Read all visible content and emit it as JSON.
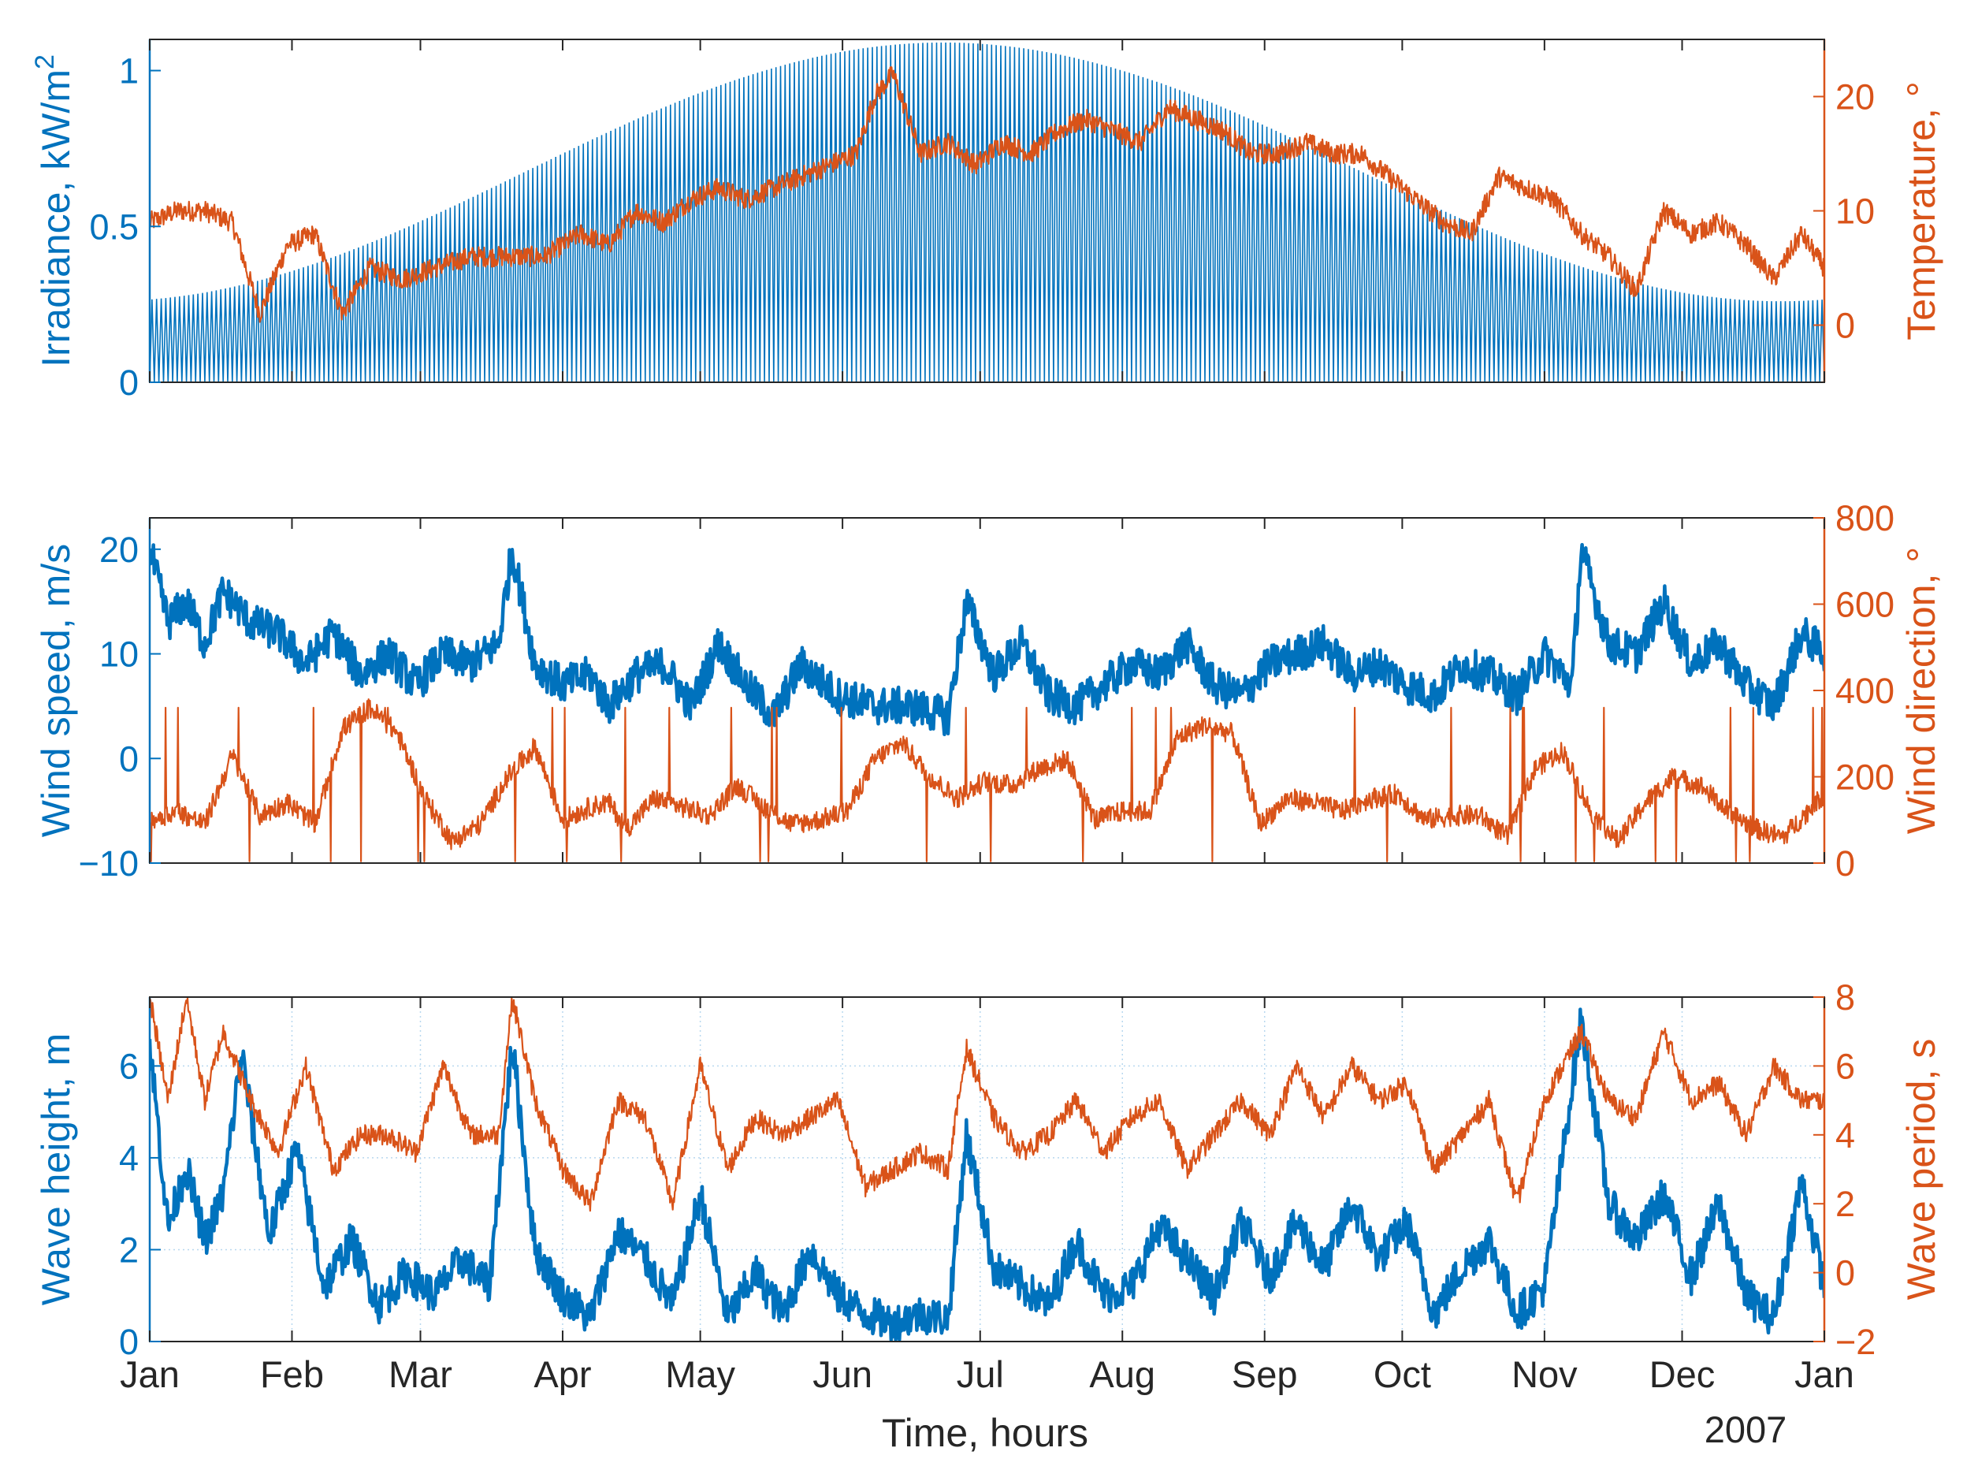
{
  "colors": {
    "left": "#0072BD",
    "right": "#D95319",
    "axis": "#262626",
    "grid": "#b8d8ef"
  },
  "chart_data": [
    {
      "type": "line",
      "title": "",
      "ylabel_left": "Irradiance, kW/m",
      "ylabel_left_sup": "2",
      "ylabel_right": "Temperature, °",
      "ylim_left": [
        0,
        1.1
      ],
      "ylim_right": [
        -5,
        25
      ],
      "yticks_left": [
        0,
        0.5,
        1
      ],
      "yticks_left_labels": [
        "0",
        "0.5",
        "1"
      ],
      "yticks_right": [
        0,
        10,
        20
      ],
      "yticks_right_labels": [
        "0",
        "10",
        "20"
      ],
      "grid": false,
      "series": [
        {
          "name": "Irradiance",
          "axis": "left",
          "style": "daily-cycle",
          "peak_kw_m2": {
            "jan": 0.26,
            "jun": 1.09,
            "dec": 0.25
          }
        },
        {
          "name": "Temperature",
          "axis": "right",
          "style": "line",
          "x_day": [
            0,
            6,
            12,
            18,
            24,
            30,
            36,
            42,
            48,
            55,
            62,
            70,
            78,
            86,
            94,
            100,
            106,
            112,
            118,
            124,
            130,
            136,
            142,
            148,
            154,
            158,
            162,
            168,
            174,
            180,
            186,
            192,
            198,
            204,
            210,
            216,
            222,
            228,
            234,
            240,
            246,
            252,
            258,
            264,
            270,
            276,
            282,
            288,
            294,
            300,
            306,
            312,
            318,
            324,
            330,
            336,
            342,
            348,
            354,
            360,
            365
          ],
          "values": [
            9,
            10,
            10,
            9,
            1,
            7,
            8,
            1,
            5,
            4,
            5,
            6,
            6,
            6,
            8,
            7,
            10,
            9,
            11,
            12,
            11,
            12,
            13,
            14,
            15,
            20,
            22,
            15,
            16,
            14,
            16,
            15,
            17,
            18,
            17,
            16,
            19,
            18,
            17,
            15,
            15,
            16,
            15,
            15,
            13,
            11,
            9,
            8,
            13,
            12,
            11,
            8,
            6,
            3,
            10,
            8,
            9,
            7,
            4,
            8,
            5
          ]
        }
      ]
    },
    {
      "type": "line",
      "title": "",
      "ylabel_left": "Wind speed, m/s",
      "ylabel_right": "Wind direction, °",
      "ylim_left": [
        -10,
        23
      ],
      "ylim_right": [
        0,
        800
      ],
      "yticks_left": [
        -10,
        0,
        10,
        20
      ],
      "yticks_left_labels": [
        "−10",
        "0",
        "10",
        "20"
      ],
      "yticks_right": [
        0,
        200,
        400,
        600,
        800
      ],
      "yticks_right_labels": [
        "0",
        "200",
        "400",
        "600",
        "800"
      ],
      "grid": false,
      "series": [
        {
          "name": "Wind speed",
          "axis": "left",
          "style": "thick",
          "x_day": [
            0,
            4,
            8,
            12,
            16,
            22,
            28,
            34,
            40,
            46,
            52,
            58,
            64,
            70,
            76,
            79,
            84,
            90,
            96,
            100,
            106,
            112,
            118,
            124,
            130,
            136,
            142,
            150,
            158,
            166,
            174,
            178,
            184,
            190,
            196,
            202,
            208,
            214,
            220,
            226,
            232,
            238,
            244,
            250,
            256,
            262,
            268,
            274,
            280,
            286,
            292,
            298,
            304,
            310,
            312,
            318,
            324,
            330,
            336,
            342,
            348,
            354,
            360,
            365
          ],
          "values": [
            20,
            13,
            15,
            11,
            16,
            13,
            12,
            9,
            12,
            8,
            10,
            7,
            10,
            9,
            11,
            20,
            9,
            7,
            8,
            5,
            8,
            9,
            5,
            11,
            7,
            4,
            9,
            6,
            5,
            5,
            4,
            15,
            8,
            11,
            6,
            5,
            7,
            9,
            8,
            11,
            7,
            6,
            9,
            10,
            11,
            8,
            9,
            7,
            6,
            9,
            8,
            6,
            10,
            7,
            20,
            11,
            10,
            15,
            9,
            11,
            7,
            5,
            12,
            10
          ]
        },
        {
          "name": "Wind direction",
          "axis": "right",
          "style": "spiky",
          "x_day": [
            0,
            6,
            12,
            18,
            24,
            30,
            36,
            42,
            48,
            54,
            60,
            66,
            72,
            78,
            84,
            90,
            96,
            100,
            104,
            110,
            116,
            122,
            128,
            134,
            140,
            146,
            152,
            158,
            164,
            170,
            176,
            182,
            188,
            194,
            200,
            206,
            212,
            218,
            224,
            230,
            236,
            242,
            248,
            254,
            260,
            266,
            272,
            278,
            284,
            290,
            296,
            302,
            308,
            314,
            320,
            326,
            332,
            338,
            344,
            350,
            356,
            365
          ],
          "values": [
            100,
            120,
            90,
            250,
            110,
            140,
            90,
            310,
            360,
            300,
            150,
            50,
            90,
            200,
            270,
            100,
            130,
            140,
            80,
            150,
            130,
            110,
            180,
            130,
            90,
            100,
            120,
            240,
            280,
            200,
            150,
            190,
            180,
            220,
            240,
            100,
            120,
            120,
            290,
            320,
            300,
            90,
            150,
            140,
            120,
            150,
            160,
            100,
            110,
            110,
            60,
            220,
            260,
            120,
            50,
            140,
            200,
            180,
            120,
            80,
            60,
            160
          ]
        }
      ]
    },
    {
      "type": "line",
      "title": "",
      "xlabel": "Time, hours",
      "year_label": "2007",
      "ylabel_left": "Wave height, m",
      "ylabel_right": "Wave period, s",
      "ylim_left": [
        0,
        7.5
      ],
      "ylim_right": [
        -2,
        8
      ],
      "yticks_left": [
        0,
        2,
        4,
        6
      ],
      "yticks_left_labels": [
        "0",
        "2",
        "4",
        "6"
      ],
      "yticks_right": [
        -2,
        0,
        2,
        4,
        6,
        8
      ],
      "yticks_right_labels": [
        "−2",
        "0",
        "2",
        "4",
        "6",
        "8"
      ],
      "grid": true,
      "series": [
        {
          "name": "Wave height",
          "axis": "left",
          "style": "thick",
          "x_day": [
            0,
            4,
            8,
            12,
            16,
            20,
            26,
            32,
            38,
            44,
            50,
            56,
            62,
            68,
            74,
            79,
            84,
            90,
            96,
            102,
            108,
            114,
            120,
            126,
            132,
            138,
            144,
            150,
            156,
            162,
            168,
            174,
            178,
            184,
            190,
            196,
            202,
            208,
            214,
            220,
            226,
            232,
            238,
            244,
            250,
            256,
            262,
            268,
            274,
            280,
            286,
            292,
            298,
            304,
            312,
            318,
            324,
            330,
            336,
            342,
            348,
            354,
            360,
            365
          ],
          "values": [
            6.5,
            2.5,
            3.8,
            2.2,
            3.2,
            6.3,
            2.3,
            4.2,
            1.2,
            2.2,
            0.8,
            1.5,
            1.0,
            1.8,
            1.2,
            6.5,
            2.0,
            1.0,
            0.5,
            2.4,
            1.8,
            0.8,
            3.2,
            0.5,
            1.5,
            0.6,
            2.0,
            1.0,
            0.6,
            0.4,
            0.6,
            0.5,
            4.5,
            1.6,
            1.2,
            0.8,
            2.2,
            1.0,
            1.2,
            2.5,
            1.8,
            1.0,
            2.6,
            1.4,
            2.6,
            1.6,
            3.0,
            1.8,
            2.6,
            0.6,
            1.6,
            2.2,
            0.6,
            1.2,
            7.0,
            3.0,
            2.2,
            3.2,
            1.4,
            3.0,
            1.0,
            0.5,
            3.5,
            1.2
          ]
        },
        {
          "name": "Wave period",
          "axis": "right",
          "style": "line",
          "x_day": [
            0,
            4,
            8,
            12,
            16,
            22,
            28,
            34,
            40,
            46,
            52,
            58,
            64,
            70,
            76,
            79,
            84,
            90,
            96,
            102,
            108,
            114,
            120,
            126,
            132,
            138,
            144,
            150,
            156,
            162,
            168,
            174,
            178,
            184,
            190,
            196,
            202,
            208,
            214,
            220,
            226,
            232,
            238,
            244,
            250,
            256,
            262,
            268,
            274,
            280,
            286,
            292,
            298,
            304,
            312,
            318,
            324,
            330,
            336,
            342,
            348,
            354,
            360,
            365
          ],
          "values": [
            8,
            5,
            8,
            5,
            7,
            5,
            3.5,
            6,
            3,
            4,
            4,
            3.5,
            6,
            4,
            4,
            8,
            5,
            3,
            2,
            5,
            4.5,
            2,
            6,
            3,
            4.5,
            4,
            4.5,
            5,
            2.5,
            3,
            3.5,
            3,
            6.5,
            4.5,
            3.5,
            4,
            5,
            3.5,
            4.5,
            5,
            3,
            4,
            5,
            4,
            6,
            4.5,
            6,
            5,
            5.5,
            3,
            4,
            5,
            2,
            5,
            7,
            5,
            4.5,
            7,
            5,
            5.5,
            4,
            6,
            5,
            5
          ]
        }
      ]
    }
  ],
  "x_axis": {
    "xlim_days": [
      0,
      365
    ],
    "ticks_days": [
      0,
      31,
      59,
      90,
      120,
      151,
      181,
      212,
      243,
      273,
      304,
      334,
      365
    ],
    "tick_labels": [
      "Jan",
      "Feb",
      "Mar",
      "Apr",
      "May",
      "Jun",
      "Jul",
      "Aug",
      "Sep",
      "Oct",
      "Nov",
      "Dec",
      "Jan"
    ]
  }
}
